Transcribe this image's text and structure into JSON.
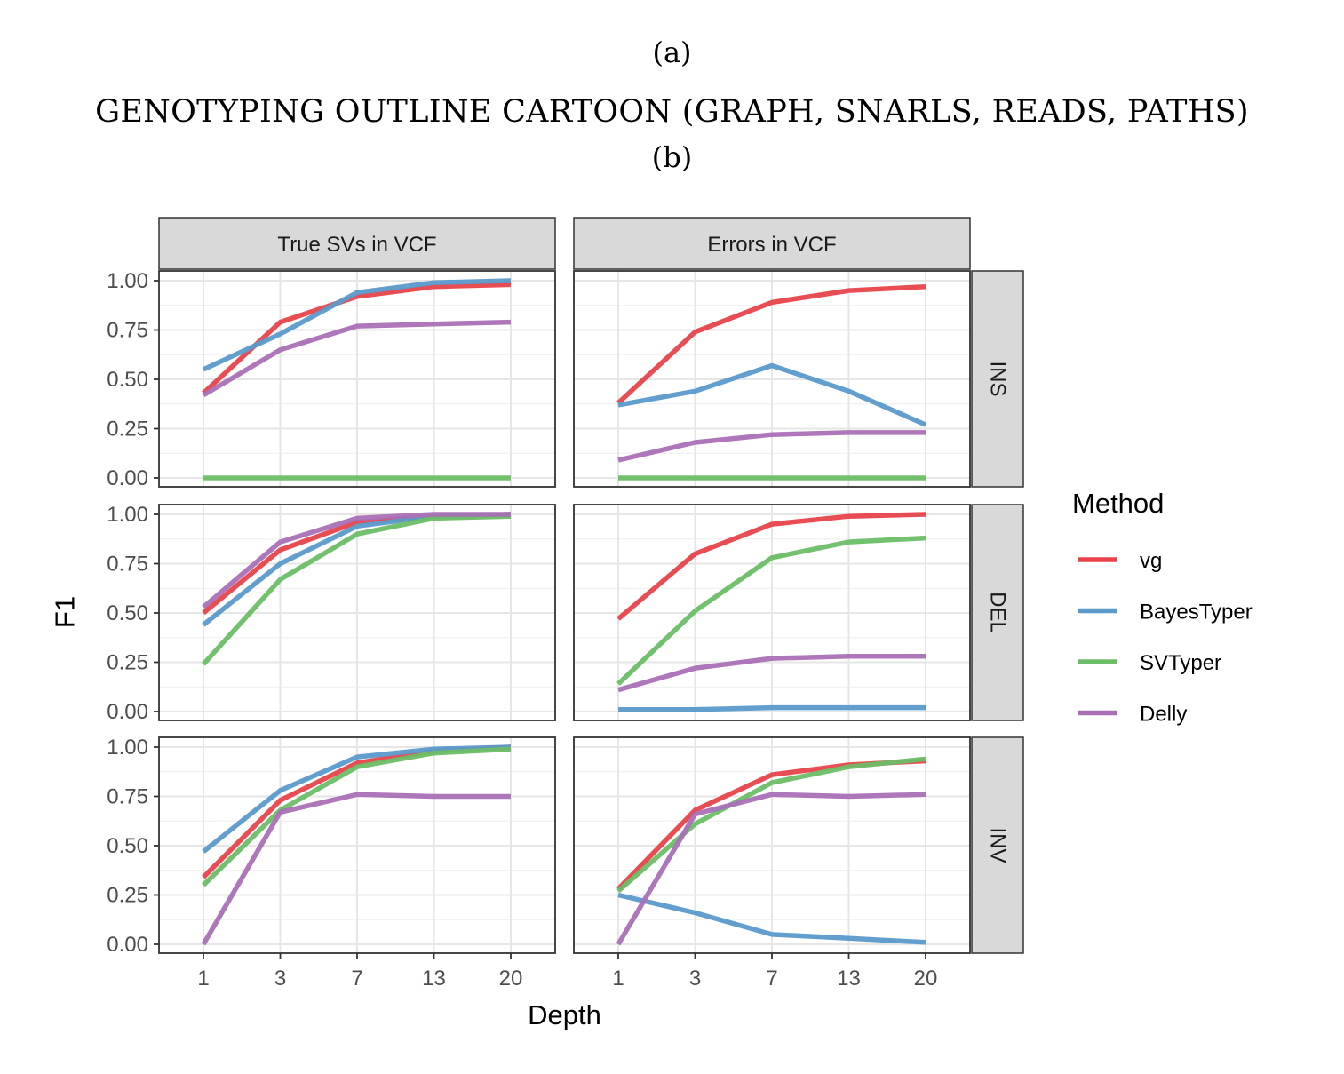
{
  "captions": {
    "a": "(a)",
    "title": "GENOTYPING OUTLINE CARTOON (GRAPH, SNARLS, READS, PATHS)",
    "b": "(b)"
  },
  "chart_data": {
    "type": "line",
    "xlabel": "Depth",
    "ylabel": "F1",
    "x": [
      1,
      3,
      7,
      13,
      20
    ],
    "x_ticks": [
      "1",
      "3",
      "7",
      "13",
      "20"
    ],
    "y_ticks": [
      "0.00",
      "0.25",
      "0.50",
      "0.75",
      "1.00"
    ],
    "ylim": [
      0,
      1
    ],
    "grid": true,
    "legend": {
      "title": "Method",
      "position": "right",
      "entries": [
        {
          "name": "vg",
          "color": "#e8434b"
        },
        {
          "name": "BayesTyper",
          "color": "#5b9acb"
        },
        {
          "name": "SVTyper",
          "color": "#6cbd67"
        },
        {
          "name": "Delly",
          "color": "#a970b6"
        }
      ]
    },
    "columns": [
      "True SVs in VCF",
      "Errors in VCF"
    ],
    "rows": [
      "INS",
      "DEL",
      "INV"
    ],
    "panels": [
      {
        "row": "INS",
        "column": "True SVs in VCF",
        "series": [
          {
            "name": "vg",
            "values": [
              0.43,
              0.79,
              0.92,
              0.97,
              0.98
            ]
          },
          {
            "name": "BayesTyper",
            "values": [
              0.55,
              0.73,
              0.94,
              0.99,
              1.0
            ]
          },
          {
            "name": "SVTyper",
            "values": [
              0.0,
              0.0,
              0.0,
              0.0,
              0.0
            ]
          },
          {
            "name": "Delly",
            "values": [
              0.42,
              0.65,
              0.77,
              0.78,
              0.79
            ]
          }
        ]
      },
      {
        "row": "INS",
        "column": "Errors in VCF",
        "series": [
          {
            "name": "vg",
            "values": [
              0.38,
              0.74,
              0.89,
              0.95,
              0.97
            ]
          },
          {
            "name": "BayesTyper",
            "values": [
              0.37,
              0.44,
              0.57,
              0.44,
              0.27
            ]
          },
          {
            "name": "SVTyper",
            "values": [
              0.0,
              0.0,
              0.0,
              0.0,
              0.0
            ]
          },
          {
            "name": "Delly",
            "values": [
              0.09,
              0.18,
              0.22,
              0.23,
              0.23
            ]
          }
        ]
      },
      {
        "row": "DEL",
        "column": "True SVs in VCF",
        "series": [
          {
            "name": "vg",
            "values": [
              0.5,
              0.82,
              0.96,
              0.99,
              1.0
            ]
          },
          {
            "name": "BayesTyper",
            "values": [
              0.44,
              0.75,
              0.94,
              0.99,
              1.0
            ]
          },
          {
            "name": "SVTyper",
            "values": [
              0.24,
              0.67,
              0.9,
              0.98,
              0.99
            ]
          },
          {
            "name": "Delly",
            "values": [
              0.53,
              0.86,
              0.98,
              1.0,
              1.0
            ]
          }
        ]
      },
      {
        "row": "DEL",
        "column": "Errors in VCF",
        "series": [
          {
            "name": "vg",
            "values": [
              0.47,
              0.8,
              0.95,
              0.99,
              1.0
            ]
          },
          {
            "name": "BayesTyper",
            "values": [
              0.01,
              0.01,
              0.02,
              0.02,
              0.02
            ]
          },
          {
            "name": "SVTyper",
            "values": [
              0.14,
              0.51,
              0.78,
              0.86,
              0.88
            ]
          },
          {
            "name": "Delly",
            "values": [
              0.11,
              0.22,
              0.27,
              0.28,
              0.28
            ]
          }
        ]
      },
      {
        "row": "INV",
        "column": "True SVs in VCF",
        "series": [
          {
            "name": "vg",
            "values": [
              0.34,
              0.73,
              0.92,
              0.98,
              1.0
            ]
          },
          {
            "name": "BayesTyper",
            "values": [
              0.47,
              0.78,
              0.95,
              0.99,
              1.0
            ]
          },
          {
            "name": "SVTyper",
            "values": [
              0.3,
              0.68,
              0.9,
              0.97,
              0.99
            ]
          },
          {
            "name": "Delly",
            "values": [
              0.0,
              0.67,
              0.76,
              0.75,
              0.75
            ]
          }
        ]
      },
      {
        "row": "INV",
        "column": "Errors in VCF",
        "series": [
          {
            "name": "vg",
            "values": [
              0.28,
              0.68,
              0.86,
              0.91,
              0.93
            ]
          },
          {
            "name": "BayesTyper",
            "values": [
              0.25,
              0.16,
              0.05,
              0.03,
              0.01
            ]
          },
          {
            "name": "SVTyper",
            "values": [
              0.27,
              0.61,
              0.82,
              0.9,
              0.94
            ]
          },
          {
            "name": "Delly",
            "values": [
              0.0,
              0.66,
              0.76,
              0.75,
              0.76
            ]
          }
        ]
      }
    ]
  }
}
